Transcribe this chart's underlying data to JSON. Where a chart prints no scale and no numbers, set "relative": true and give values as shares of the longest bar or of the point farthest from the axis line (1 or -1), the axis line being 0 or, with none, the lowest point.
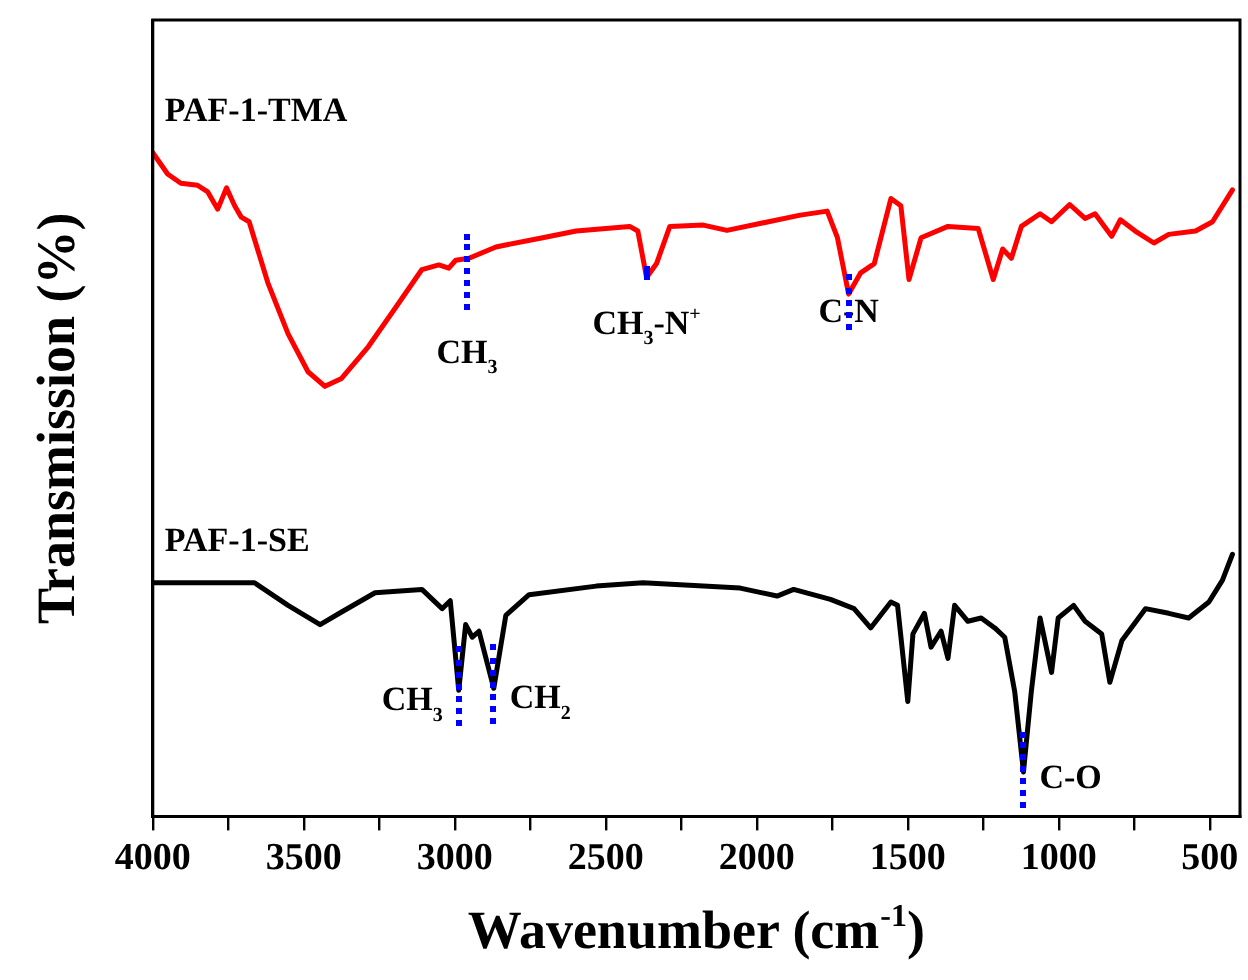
{
  "chart_data": {
    "type": "line",
    "relative": true,
    "xlabel": "Wavenumber (cm$^{-1}$)",
    "ylabel": "Transmission (%)",
    "xlim": [
      4000,
      400
    ],
    "xticks": [
      4000,
      {
        "value": 3750,
        "label": null
      },
      3500,
      {
        "value": 3250,
        "label": null
      },
      3000,
      {
        "value": 2750,
        "label": null
      },
      2500,
      {
        "value": 2250,
        "label": null
      },
      2000,
      {
        "value": 1750,
        "label": null
      },
      1500,
      {
        "value": 1250,
        "label": null
      },
      1000,
      {
        "value": 750,
        "label": null
      },
      500
    ],
    "grid": false,
    "marker": "none",
    "line_style": "solid",
    "series": [
      {
        "name": "PAF-1-TMA",
        "color": "#ff0000",
        "x": [
          4000,
          3951,
          3907,
          3852,
          3818,
          3785,
          3756,
          3729,
          3707,
          3681,
          3619,
          3552,
          3486,
          3430,
          3375,
          3286,
          3197,
          3109,
          3053,
          3020,
          2997,
          2953,
          2864,
          2709,
          2598,
          2421,
          2394,
          2365,
          2332,
          2288,
          2177,
          2099,
          1856,
          1767,
          1733,
          1696,
          1656,
          1611,
          1556,
          1523,
          1496,
          1456,
          1367,
          1267,
          1217,
          1186,
          1157,
          1124,
          1062,
          1024,
          964,
          913,
          880,
          825,
          796,
          747,
          685,
          636,
          547,
          491,
          425
        ],
        "values": [
          1.0,
          0.968,
          0.954,
          0.951,
          0.941,
          0.915,
          0.947,
          0.92,
          0.903,
          0.896,
          0.804,
          0.727,
          0.67,
          0.648,
          0.66,
          0.708,
          0.766,
          0.824,
          0.831,
          0.826,
          0.838,
          0.841,
          0.858,
          0.872,
          0.882,
          0.889,
          0.882,
          0.812,
          0.833,
          0.889,
          0.891,
          0.883,
          0.906,
          0.912,
          0.872,
          0.787,
          0.819,
          0.833,
          0.931,
          0.92,
          0.809,
          0.872,
          0.889,
          0.886,
          0.809,
          0.855,
          0.841,
          0.889,
          0.908,
          0.896,
          0.922,
          0.901,
          0.908,
          0.874,
          0.899,
          0.882,
          0.864,
          0.877,
          0.882,
          0.896,
          0.944
        ]
      },
      {
        "name": "PAF-1-SE",
        "color": "#000000",
        "x": [
          4000,
          3663,
          3552,
          3446,
          3375,
          3264,
          3109,
          3042,
          3015,
          2987,
          2964,
          2942,
          2920,
          2871,
          2831,
          2754,
          2532,
          2377,
          2177,
          2055,
          1933,
          1878,
          1756,
          1678,
          1623,
          1556,
          1534,
          1500,
          1483,
          1445,
          1423,
          1390,
          1367,
          1345,
          1301,
          1257,
          1212,
          1179,
          1146,
          1117,
          1091,
          1062,
          1024,
          1002,
          951,
          913,
          858,
          831,
          791,
          713,
          636,
          570,
          503,
          458,
          425
        ],
        "values": [
          0.352,
          0.352,
          0.318,
          0.289,
          0.308,
          0.337,
          0.342,
          0.313,
          0.325,
          0.19,
          0.289,
          0.27,
          0.279,
          0.193,
          0.303,
          0.334,
          0.347,
          0.352,
          0.347,
          0.344,
          0.332,
          0.342,
          0.327,
          0.313,
          0.284,
          0.323,
          0.318,
          0.173,
          0.275,
          0.306,
          0.255,
          0.279,
          0.238,
          0.318,
          0.294,
          0.299,
          0.284,
          0.27,
          0.188,
          0.067,
          0.188,
          0.299,
          0.217,
          0.299,
          0.318,
          0.294,
          0.275,
          0.202,
          0.265,
          0.313,
          0.306,
          0.299,
          0.323,
          0.356,
          0.395
        ]
      }
    ],
    "annotations": [
      {
        "text": "CH$_{3}$",
        "x": 2960,
        "y": 0.84
      },
      {
        "text": "CH$_{3}$-N$^{+}$",
        "x": 2365,
        "y": 0.812
      },
      {
        "text": "C-N",
        "x": 1696,
        "y": 0.787
      },
      {
        "text": "CH$_{3}$",
        "x": 2987,
        "y": 0.19
      },
      {
        "text": "CH$_{2}$",
        "x": 2871,
        "y": 0.193
      },
      {
        "text": "C-O",
        "x": 1117,
        "y": 0.067
      }
    ]
  }
}
